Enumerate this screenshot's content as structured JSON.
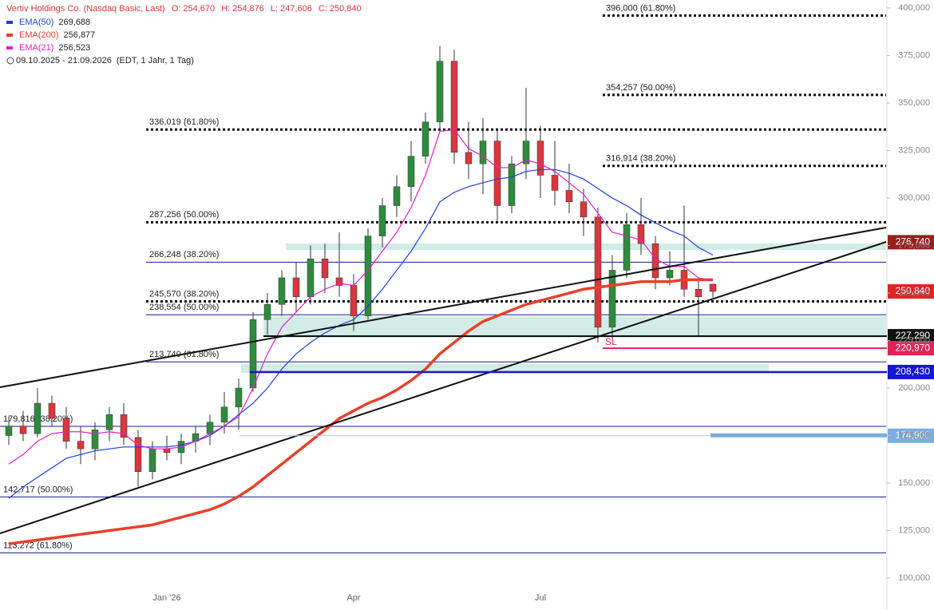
{
  "chart_data": {
    "type": "candlestick",
    "title": "Vertiv Holdings Co. (Nasdaq Basic, Last)",
    "header_ohlc": [
      {
        "name": "O:",
        "text": "254,670"
      },
      {
        "name": "H:",
        "text": "254,876"
      },
      {
        "name": "L:",
        "text": "247,606"
      },
      {
        "name": "C:",
        "text": "250,840"
      }
    ],
    "date_range": "09.10.2025 - 21.09.2026",
    "range_note": "(EDT, 1 Jahr, 1 Tag)",
    "up_color": "#2e8b3e",
    "down_color": "#d9363e",
    "categories": [
      null,
      null,
      null,
      null,
      null,
      null,
      null,
      null,
      null,
      null,
      null,
      "Jan '26",
      null,
      null,
      null,
      null,
      null,
      null,
      null,
      null,
      null,
      null,
      null,
      null,
      "Apr",
      null,
      null,
      null,
      null,
      null,
      null,
      null,
      null,
      null,
      null,
      null,
      null,
      "Jul",
      null,
      null,
      null,
      null,
      null,
      null,
      null,
      null,
      null,
      null,
      null,
      null
    ],
    "open": [
      175000,
      180000,
      176000,
      192000,
      184000,
      172000,
      168000,
      178000,
      186000,
      174000,
      156000,
      168000,
      166000,
      172000,
      176000,
      182000,
      190000,
      200000,
      236000,
      244000,
      258000,
      248000,
      268000,
      258000,
      254000,
      238000,
      280000,
      296000,
      306000,
      322000,
      340000,
      372000,
      324000,
      318000,
      330000,
      296000,
      318000,
      330000,
      312000,
      304000,
      298000,
      290000,
      232000,
      262000,
      286000,
      276000,
      258000,
      262000,
      252000,
      254670
    ],
    "high": [
      185000,
      188000,
      200000,
      196000,
      190000,
      180000,
      182000,
      190000,
      192000,
      178000,
      172000,
      175000,
      176000,
      180000,
      186000,
      198000,
      205000,
      240000,
      250000,
      262000,
      266000,
      275000,
      276000,
      282000,
      260000,
      284000,
      300000,
      312000,
      330000,
      345000,
      380000,
      378000,
      340000,
      342000,
      336000,
      322000,
      358000,
      338000,
      330000,
      318000,
      305000,
      295000,
      270000,
      292000,
      300000,
      280000,
      272000,
      296000,
      258000,
      254876
    ],
    "low": [
      170000,
      172000,
      174000,
      180000,
      168000,
      160000,
      162000,
      172000,
      170000,
      148000,
      152000,
      162000,
      160000,
      166000,
      170000,
      176000,
      178000,
      198000,
      228000,
      238000,
      240000,
      244000,
      250000,
      248000,
      230000,
      236000,
      274000,
      290000,
      298000,
      318000,
      336000,
      318000,
      310000,
      302000,
      288000,
      292000,
      310000,
      300000,
      296000,
      292000,
      280000,
      224000,
      226000,
      258000,
      270000,
      252000,
      254000,
      248000,
      227000,
      247606
    ],
    "close": [
      180000,
      176000,
      192000,
      184000,
      172000,
      168000,
      178000,
      186000,
      174000,
      156000,
      168000,
      166000,
      172000,
      176000,
      182000,
      190000,
      200000,
      236000,
      244000,
      258000,
      248000,
      268000,
      258000,
      254000,
      238000,
      280000,
      296000,
      306000,
      322000,
      340000,
      372000,
      324000,
      318000,
      330000,
      296000,
      318000,
      330000,
      312000,
      304000,
      298000,
      290000,
      232000,
      262000,
      286000,
      276000,
      258000,
      262000,
      252000,
      248000,
      250840
    ],
    "series": [
      {
        "name": "EMA(50)",
        "color": "#1f3fd6",
        "last": {
          "value": 269688,
          "label": "269,688"
        },
        "values": [
          142000,
          148000,
          153000,
          158000,
          163000,
          165000,
          167000,
          168000,
          169000,
          169000,
          169000,
          169000,
          170000,
          172000,
          175000,
          180000,
          186000,
          192000,
          200000,
          210000,
          218000,
          224000,
          229000,
          233000,
          236000,
          243000,
          252000,
          262000,
          272000,
          284000,
          298000,
          303000,
          306000,
          308000,
          310000,
          311000,
          314000,
          315000,
          315000,
          313000,
          310000,
          305000,
          300000,
          296000,
          291000,
          287000,
          283000,
          280000,
          274000,
          270000
        ]
      },
      {
        "name": "EMA(200)",
        "color": "#e8412c",
        "last": {
          "value": 256877,
          "label": "256,877"
        },
        "values": [
          118000,
          119000,
          120000,
          121000,
          122000,
          123000,
          124000,
          125000,
          126000,
          127000,
          128000,
          130000,
          132000,
          134000,
          136000,
          139000,
          143000,
          148000,
          154000,
          160000,
          166000,
          172000,
          178000,
          184000,
          188000,
          192000,
          195000,
          199000,
          204000,
          210000,
          218000,
          224000,
          230000,
          235000,
          238000,
          241000,
          244000,
          246000,
          248000,
          250000,
          252000,
          253000,
          254000,
          255000,
          256000,
          256000,
          256000,
          257000,
          257000,
          257000
        ]
      },
      {
        "name": "EMA(21)",
        "color": "#e020c8",
        "last": {
          "value": 256523,
          "label": "256,523"
        },
        "values": [
          160000,
          165000,
          172000,
          176000,
          177000,
          177000,
          176000,
          177000,
          176000,
          170000,
          168000,
          168000,
          169000,
          172000,
          176000,
          180000,
          185000,
          200000,
          218000,
          232000,
          240000,
          248000,
          252000,
          255000,
          254000,
          262000,
          272000,
          282000,
          295000,
          312000,
          335000,
          336000,
          326000,
          322000,
          316000,
          316000,
          320000,
          318000,
          314000,
          308000,
          302000,
          292000,
          282000,
          280000,
          278000,
          268000,
          264000,
          264000,
          258000,
          256500
        ]
      }
    ],
    "levels": [
      {
        "value": 396000,
        "label": "396,000 (61.80%)",
        "style": "dotted"
      },
      {
        "value": 354257,
        "label": "354,257 (50.00%)",
        "style": "dotted"
      },
      {
        "value": 336019,
        "label": "336,019 (61.80%)",
        "style": "dotted"
      },
      {
        "value": 316914,
        "label": "316,914 (38.20%)",
        "style": "dotted"
      },
      {
        "value": 287256,
        "label": "287,256 (50.00%)",
        "style": "dotted"
      },
      {
        "value": 266248,
        "label": "266,248 (38.20%)",
        "style": "thin"
      },
      {
        "value": 245570,
        "label": "245,570 (38.20%)",
        "style": "dotted"
      },
      {
        "value": 238554,
        "label": "238,554 (50.00%)",
        "style": "thin"
      },
      {
        "value": 213740,
        "label": "213,740 (61.80%)",
        "style": "thin"
      },
      {
        "value": 179816,
        "label": "179,816 (38.20%)",
        "style": "thin"
      },
      {
        "value": 142717,
        "label": "142,717 (50.00%)",
        "style": "thin"
      },
      {
        "value": 113272,
        "label": "113,272 (61.80%)",
        "style": "thin"
      }
    ],
    "price_tags": [
      {
        "value": 276740,
        "label": "276,740",
        "color": "#9b1c1c"
      },
      {
        "value": 250840,
        "label": "250,840",
        "color": "#e02424"
      },
      {
        "value": 227290,
        "label": "227,290",
        "color": "#111111"
      },
      {
        "value": 220970,
        "label": "220,970",
        "color": "#e0245a"
      },
      {
        "value": 208430,
        "label": "208,430",
        "color": "#1515d6"
      },
      {
        "value": 174900,
        "label": "174,900",
        "color": "#7aaee0"
      }
    ],
    "annotations": [
      "SL"
    ],
    "ylim": [
      83200,
      404200
    ],
    "yticks": [
      {
        "value": 100000,
        "label": "100,000"
      },
      {
        "value": 125000,
        "label": "125,000"
      },
      {
        "value": 150000,
        "label": "150,000"
      },
      {
        "value": 175000,
        "label": "175,000"
      },
      {
        "value": 200000,
        "label": "200,000"
      },
      {
        "value": 225000,
        "label": "225,000"
      },
      {
        "value": 250000,
        "label": "250,000"
      },
      {
        "value": 275000,
        "label": "275,000"
      },
      {
        "value": 300000,
        "label": "300,000"
      },
      {
        "value": 325000,
        "label": "325,000"
      },
      {
        "value": 350000,
        "label": "350,000"
      },
      {
        "value": 375000,
        "label": "375,000"
      },
      {
        "value": 400000,
        "label": "400,000"
      }
    ]
  }
}
